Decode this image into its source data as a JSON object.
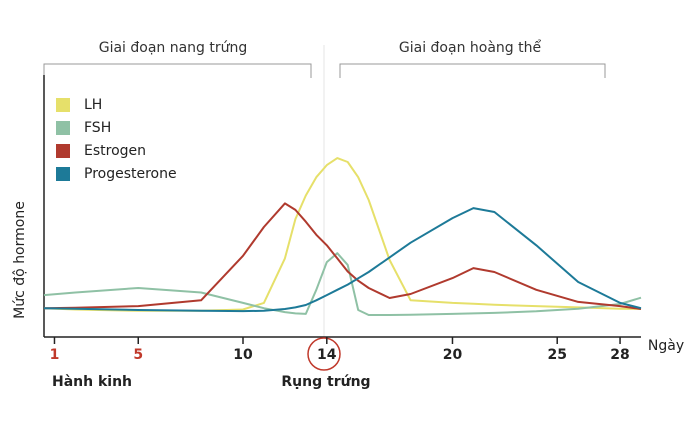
{
  "chart_data": {
    "type": "line",
    "x_label": "Ngày",
    "y_label": "Mức độ hormone",
    "phases": [
      "Giai đoạn nang trứng",
      "Giai đoạn hoàng thể"
    ],
    "annotations": [
      "Hành kinh",
      "Rụng trứng"
    ],
    "x": [
      0.5,
      2,
      5,
      8,
      10,
      11,
      12,
      12.5,
      13,
      13.5,
      14,
      14.5,
      15,
      15.5,
      16,
      17,
      18,
      20,
      21,
      22,
      24,
      26,
      28,
      29
    ],
    "series": [
      {
        "name": "LH",
        "color": "#e6e06a",
        "values": [
          11,
          10.5,
          10,
          10,
          10.5,
          13,
          30,
          45,
          54,
          61,
          65.6,
          68.3,
          66.8,
          61,
          52.3,
          29.4,
          14,
          13,
          12.7,
          12.3,
          11.8,
          11.3,
          10.8,
          10.7
        ]
      },
      {
        "name": "FSH",
        "color": "#8fc1a5",
        "values": [
          16,
          17,
          18.7,
          17,
          13,
          11,
          9.5,
          9,
          8.8,
          18,
          28.6,
          32,
          27.5,
          10.3,
          8.4,
          8.4,
          8.5,
          8.8,
          9,
          9.2,
          9.8,
          10.8,
          12.6,
          15
        ]
      },
      {
        "name": "Estrogen",
        "color": "#b03a2e",
        "values": [
          11,
          11.2,
          11.8,
          14,
          31,
          42,
          51,
          48.5,
          44,
          39,
          35,
          30,
          25,
          21.5,
          18.7,
          14.9,
          16.4,
          22.5,
          26.3,
          24.8,
          18,
          13.4,
          11.8,
          10.7
        ]
      },
      {
        "name": "Progesterone",
        "color": "#1d7a98",
        "values": [
          11,
          10.8,
          10.3,
          10,
          9.9,
          10,
          10.7,
          11.3,
          12.2,
          14,
          16,
          18,
          20,
          22.4,
          24.8,
          30.4,
          36,
          45.4,
          49.2,
          47.7,
          35,
          21,
          13,
          11
        ]
      }
    ],
    "xlim": [
      0.5,
      29
    ],
    "xticks": [
      1,
      5,
      10,
      14,
      20,
      25,
      28
    ],
    "ylim": [
      0,
      100
    ]
  }
}
